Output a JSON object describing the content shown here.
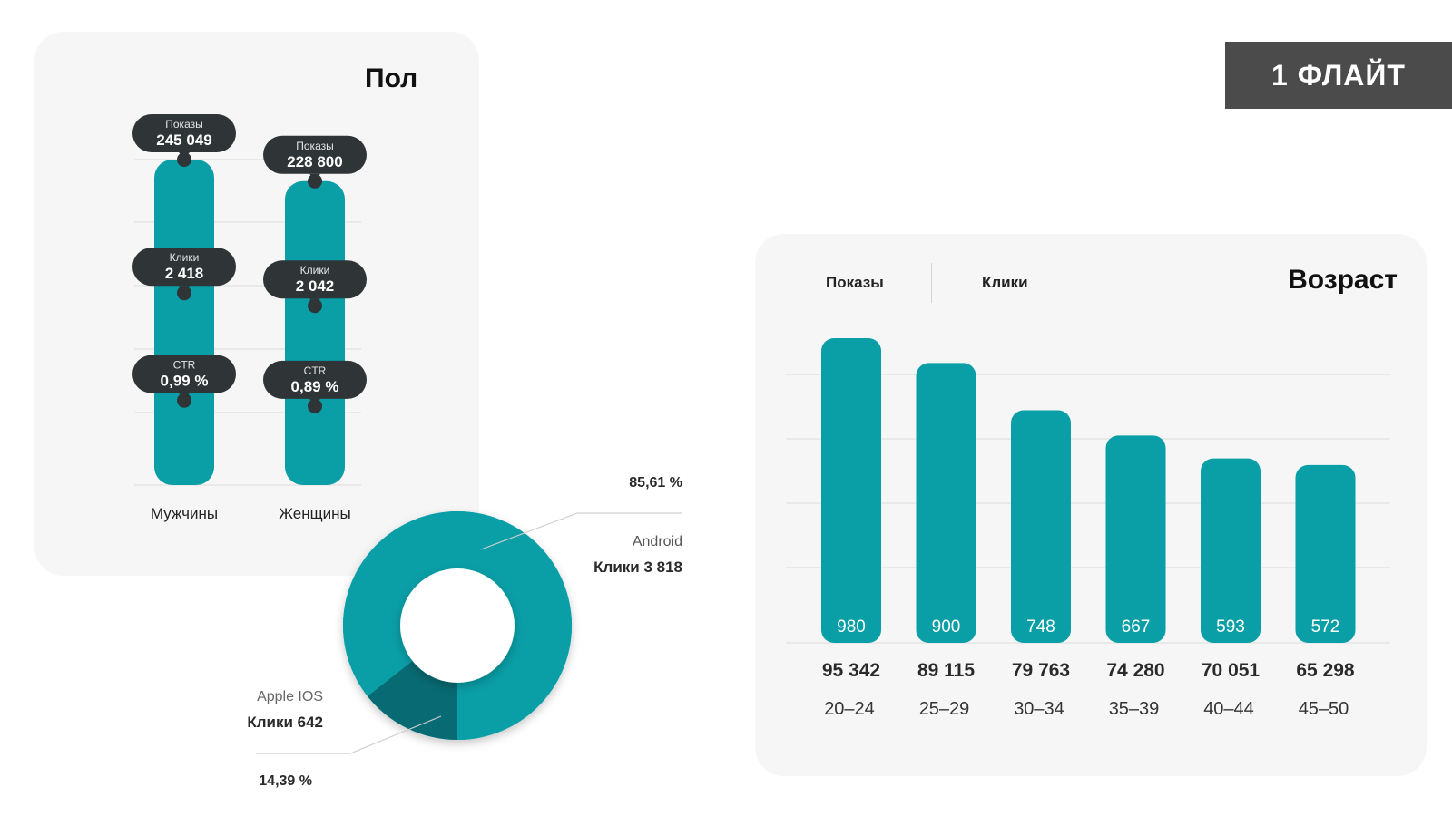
{
  "brand": "1 ФЛАЙТ",
  "gender_card": {
    "title": "Пол"
  },
  "age_card": {
    "title": "Возраст",
    "tabs": [
      "Показы",
      "Клики"
    ]
  },
  "colors": {
    "teal": "#0a9ea6",
    "teal_dark": "#086a72",
    "bubble": "#2f3436",
    "card": "#f6f6f6",
    "badge": "#4b4b4b"
  },
  "chart_data": [
    {
      "type": "bar",
      "title": "Пол",
      "categories": [
        "Мужчины",
        "Женщины"
      ],
      "series": [
        {
          "name": "Показы",
          "values": [
            245049,
            228800
          ],
          "labels": [
            "245 049",
            "228 800"
          ]
        },
        {
          "name": "Клики",
          "values": [
            2418,
            2042
          ],
          "labels": [
            "2 418",
            "2 042"
          ]
        },
        {
          "name": "CTR",
          "values": [
            0.99,
            0.89
          ],
          "labels": [
            "0,99 %",
            "0,89 %"
          ]
        }
      ],
      "grid": true
    },
    {
      "type": "pie",
      "donut": true,
      "slices": [
        {
          "name": "Android",
          "label": "Клики 3 818",
          "value": 85.61,
          "pct_label": "85,61 %",
          "color": "#0a9ea6"
        },
        {
          "name": "Apple IOS",
          "label": "Клики 642",
          "value": 14.39,
          "pct_label": "14,39 %",
          "color": "#086a72"
        }
      ]
    },
    {
      "type": "bar",
      "title": "Возраст",
      "categories": [
        "20–24",
        "25–29",
        "30–34",
        "35–39",
        "40–44",
        "45–50"
      ],
      "series": [
        {
          "name": "Клики",
          "values": [
            980,
            900,
            748,
            667,
            593,
            572
          ]
        },
        {
          "name": "Показы",
          "values": [
            95342,
            89115,
            79763,
            74280,
            70051,
            65298
          ],
          "labels": [
            "95 342",
            "89 115",
            "79 763",
            "74 280",
            "70 051",
            "65 298"
          ]
        }
      ],
      "grid": true
    }
  ]
}
